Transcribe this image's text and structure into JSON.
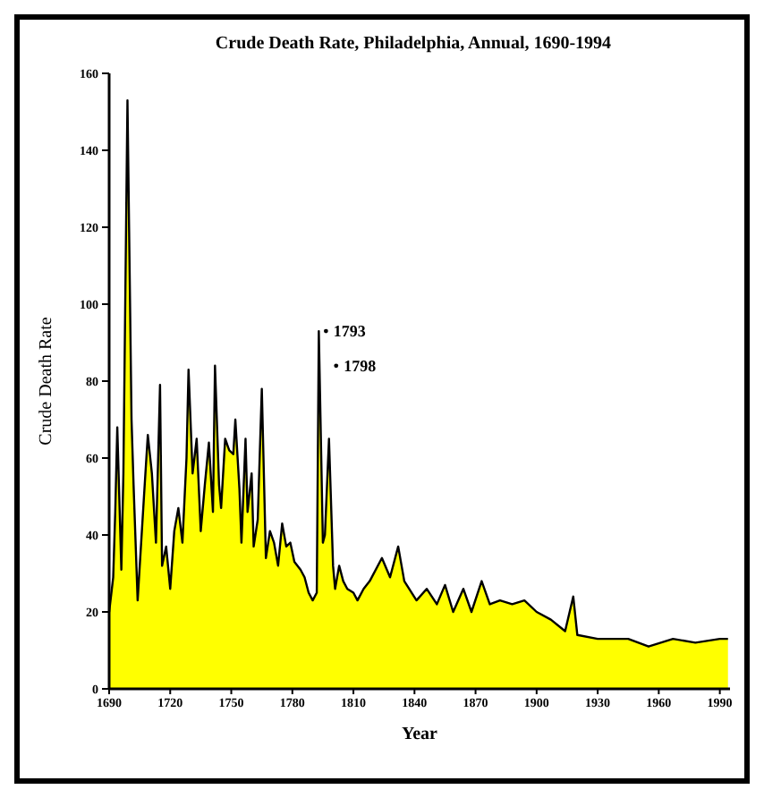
{
  "chart_data": {
    "type": "area",
    "title": "Crude Death Rate, Philadelphia, Annual, 1690-1994",
    "xlabel": "Year",
    "ylabel": "Crude Death Rate",
    "x": [
      1690,
      1692,
      1693,
      1694,
      1696,
      1697,
      1699,
      1701,
      1702,
      1704,
      1707,
      1709,
      1711,
      1713,
      1715,
      1716,
      1718,
      1720,
      1722,
      1724,
      1726,
      1728,
      1729,
      1731,
      1733,
      1735,
      1737,
      1739,
      1741,
      1742,
      1744,
      1745,
      1747,
      1749,
      1751,
      1752,
      1754,
      1755,
      1757,
      1758,
      1760,
      1761,
      1763,
      1765,
      1767,
      1769,
      1771,
      1773,
      1775,
      1777,
      1779,
      1781,
      1784,
      1786,
      1788,
      1790,
      1792,
      1793,
      1795,
      1796,
      1798,
      1800,
      1801,
      1803,
      1805,
      1807,
      1810,
      1812,
      1815,
      1818,
      1824,
      1828,
      1832,
      1835,
      1841,
      1846,
      1851,
      1855,
      1859,
      1864,
      1868,
      1873,
      1877,
      1882,
      1888,
      1894,
      1900,
      1907,
      1914,
      1918,
      1920,
      1930,
      1938,
      1945,
      1955,
      1967,
      1978,
      1990,
      1994
    ],
    "series": [
      {
        "color": "#ffff00",
        "values": [
          20,
          29,
          46,
          68,
          31,
          56,
          153,
          70,
          53,
          23,
          49,
          66,
          56,
          38,
          79,
          32,
          37,
          26,
          41,
          47,
          38,
          60,
          83,
          56,
          65,
          41,
          53,
          64,
          46,
          84,
          53,
          47,
          65,
          62,
          61,
          70,
          52,
          38,
          65,
          46,
          56,
          37,
          44,
          78,
          34,
          41,
          38,
          32,
          43,
          37,
          38,
          33,
          31,
          29,
          25,
          23,
          25,
          93,
          38,
          40,
          65,
          32,
          26,
          32,
          28,
          26,
          25,
          23,
          26,
          28,
          34,
          29,
          37,
          28,
          23,
          26,
          22,
          27,
          20,
          26,
          20,
          28,
          22,
          23,
          22,
          23,
          20,
          18,
          15,
          24,
          14,
          13,
          13,
          13,
          11,
          13,
          12,
          13,
          13
        ]
      }
    ],
    "xlim": [
      1690,
      1995
    ],
    "xticks": [
      1690,
      1720,
      1750,
      1780,
      1810,
      1840,
      1870,
      1900,
      1930,
      1960,
      1990
    ],
    "ylim": [
      0,
      160
    ],
    "yticks": [
      0,
      20,
      40,
      60,
      80,
      100,
      120,
      140,
      160
    ],
    "annotations": [
      {
        "text": "1793",
        "x": 1793,
        "y": 93
      },
      {
        "text": "1798",
        "x": 1798,
        "y": 84
      }
    ]
  }
}
